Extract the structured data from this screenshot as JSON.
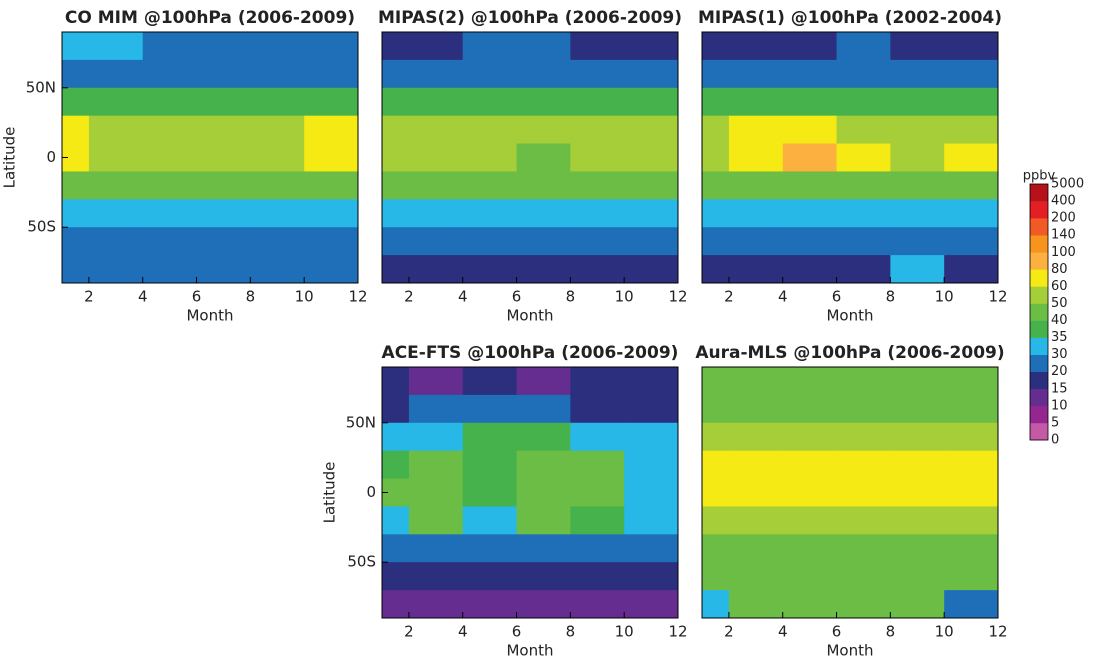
{
  "chart_data": [
    {
      "type": "contour",
      "title": "CO MIM @100hPa (2006-2009)",
      "x_label": "Month",
      "y_label": "Latitude",
      "x": [
        1,
        3,
        5,
        7,
        9,
        11
      ],
      "y": [
        80,
        60,
        40,
        20,
        0,
        -20,
        -40,
        -60,
        -80
      ],
      "z": [
        [
          30,
          30,
          25,
          25,
          25,
          25
        ],
        [
          25,
          25,
          25,
          25,
          25,
          25
        ],
        [
          35,
          35,
          35,
          35,
          35,
          35
        ],
        [
          65,
          55,
          55,
          55,
          55,
          65
        ],
        [
          65,
          55,
          55,
          55,
          55,
          65
        ],
        [
          45,
          45,
          45,
          45,
          45,
          45
        ],
        [
          32,
          32,
          32,
          32,
          32,
          32
        ],
        [
          25,
          25,
          25,
          27,
          25,
          25
        ],
        [
          25,
          25,
          25,
          25,
          25,
          25
        ]
      ],
      "xlim": [
        1,
        12
      ],
      "ylim": [
        -90,
        90
      ],
      "xticks": [
        2,
        4,
        6,
        8,
        10,
        12
      ],
      "yticks": [
        {
          "value": 50,
          "label": "50N"
        },
        0,
        {
          "value": -50,
          "label": "50S"
        }
      ]
    },
    {
      "type": "contour",
      "title": "MIPAS(2) @100hPa (2006-2009)",
      "x_label": "Month",
      "x": [
        1,
        3,
        5,
        7,
        9,
        11
      ],
      "y": [
        80,
        60,
        40,
        20,
        0,
        -20,
        -40,
        -60,
        -80
      ],
      "z": [
        [
          18,
          18,
          22,
          22,
          18,
          18
        ],
        [
          25,
          25,
          25,
          25,
          25,
          25
        ],
        [
          37,
          37,
          37,
          37,
          37,
          37
        ],
        [
          55,
          55,
          55,
          55,
          55,
          55
        ],
        [
          55,
          55,
          55,
          45,
          55,
          55
        ],
        [
          45,
          45,
          45,
          45,
          45,
          45
        ],
        [
          32,
          32,
          32,
          32,
          32,
          32
        ],
        [
          22,
          22,
          22,
          22,
          22,
          22
        ],
        [
          18,
          18,
          18,
          18,
          18,
          18
        ]
      ],
      "xlim": [
        1,
        12
      ],
      "ylim": [
        -90,
        90
      ],
      "xticks": [
        2,
        4,
        6,
        8,
        10,
        12
      ]
    },
    {
      "type": "contour",
      "title": "MIPAS(1) @100hPa (2002-2004)",
      "x_label": "Month",
      "x": [
        1,
        3,
        5,
        7,
        9,
        11
      ],
      "y": [
        80,
        60,
        40,
        20,
        0,
        -20,
        -40,
        -60,
        -80
      ],
      "z": [
        [
          18,
          18,
          18,
          22,
          18,
          18
        ],
        [
          25,
          25,
          25,
          25,
          25,
          25
        ],
        [
          37,
          37,
          37,
          37,
          37,
          37
        ],
        [
          55,
          65,
          65,
          55,
          55,
          55
        ],
        [
          55,
          65,
          85,
          65,
          55,
          65
        ],
        [
          45,
          45,
          45,
          45,
          45,
          45
        ],
        [
          32,
          32,
          32,
          32,
          32,
          32
        ],
        [
          22,
          22,
          22,
          22,
          25,
          22
        ],
        [
          18,
          18,
          18,
          18,
          32,
          18
        ]
      ],
      "xlim": [
        1,
        12
      ],
      "ylim": [
        -90,
        90
      ],
      "xticks": [
        2,
        4,
        6,
        8,
        10,
        12
      ]
    },
    {
      "type": "contour",
      "title": "ACE-FTS @100hPa (2006-2009)",
      "x_label": "Month",
      "y_label": "Latitude",
      "x": [
        1,
        3,
        5,
        7,
        9,
        11
      ],
      "y": [
        80,
        60,
        40,
        20,
        0,
        -20,
        -40,
        -60,
        -80
      ],
      "z": [
        [
          17,
          12,
          17,
          12,
          17,
          17
        ],
        [
          17,
          22,
          22,
          22,
          17,
          17
        ],
        [
          32,
          32,
          35,
          37,
          32,
          32
        ],
        [
          37,
          45,
          38,
          45,
          45,
          32
        ],
        [
          42,
          45,
          35,
          45,
          45,
          32
        ],
        [
          32,
          45,
          32,
          45,
          38,
          32
        ],
        [
          25,
          28,
          25,
          25,
          25,
          25
        ],
        [
          18,
          18,
          17,
          18,
          17,
          17
        ],
        [
          12,
          12,
          12,
          12,
          12,
          12
        ]
      ],
      "xlim": [
        1,
        12
      ],
      "ylim": [
        -90,
        90
      ],
      "xticks": [
        2,
        4,
        6,
        8,
        10,
        12
      ],
      "yticks": [
        {
          "value": 50,
          "label": "50N"
        },
        0,
        {
          "value": -50,
          "label": "50S"
        }
      ]
    },
    {
      "type": "contour",
      "title": "Aura-MLS @100hPa (2006-2009)",
      "x_label": "Month",
      "x": [
        1,
        3,
        5,
        7,
        9,
        11
      ],
      "y": [
        80,
        60,
        40,
        20,
        0,
        -20,
        -40,
        -60,
        -80
      ],
      "z": [
        [
          45,
          45,
          45,
          45,
          45,
          45
        ],
        [
          45,
          45,
          45,
          45,
          45,
          45
        ],
        [
          55,
          55,
          55,
          55,
          55,
          55
        ],
        [
          65,
          65,
          65,
          65,
          65,
          65
        ],
        [
          65,
          65,
          65,
          65,
          65,
          70
        ],
        [
          55,
          55,
          55,
          55,
          55,
          55
        ],
        [
          45,
          45,
          45,
          45,
          45,
          45
        ],
        [
          45,
          45,
          45,
          45,
          45,
          45
        ],
        [
          32,
          45,
          45,
          45,
          45,
          25
        ]
      ],
      "xlim": [
        1,
        12
      ],
      "ylim": [
        -90,
        90
      ],
      "xticks": [
        2,
        4,
        6,
        8,
        10,
        12
      ]
    }
  ],
  "colorbar": {
    "label": "ppbv",
    "levels": [
      0,
      5,
      10,
      15,
      20,
      30,
      35,
      40,
      50,
      60,
      80,
      100,
      140,
      200,
      400,
      5000
    ],
    "colors": [
      "#c45aa5",
      "#93278f",
      "#662d91",
      "#2b2f7e",
      "#1f6fb8",
      "#27b8e8",
      "#45b24b",
      "#6cbd45",
      "#a6ce39",
      "#f5ea14",
      "#fbb040",
      "#f7941d",
      "#f15a24",
      "#e31e24",
      "#b5121b"
    ]
  }
}
